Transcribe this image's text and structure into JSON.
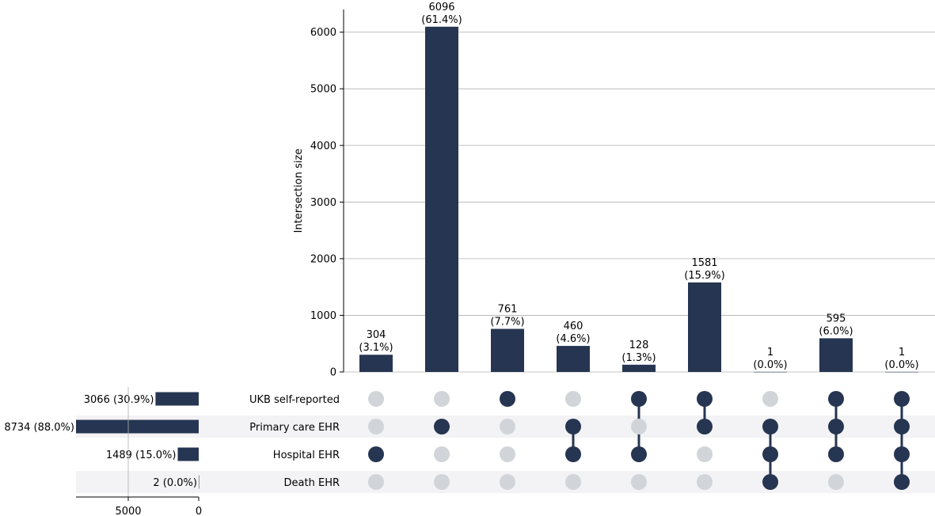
{
  "chart_data": {
    "type": "bar",
    "subtype": "upset",
    "ylabel": "Intersection size",
    "ylim": [
      0,
      6400
    ],
    "yticks": [
      0,
      1000,
      2000,
      3000,
      4000,
      5000,
      6000
    ],
    "grid": true,
    "colors": {
      "bar": "#263551",
      "dot_active": "#263551",
      "dot_inactive": "#d1d4d9",
      "grid": "#b0b0b0",
      "stripe": "#f3f3f5"
    },
    "sets": [
      {
        "name": "UKB self-reported",
        "size": 3066,
        "size_label": "3066 (30.9%)"
      },
      {
        "name": "Primary care EHR",
        "size": 8734,
        "size_label": "8734 (88.0%)"
      },
      {
        "name": "Hospital EHR",
        "size": 1489,
        "size_label": "1489 (15.0%)"
      },
      {
        "name": "Death EHR",
        "size": 2,
        "size_label": "2 (0.0%)"
      }
    ],
    "set_size_axis": {
      "ticks": [
        5000,
        0
      ],
      "max": 8734
    },
    "intersections": [
      {
        "value": 304,
        "label_value": "304",
        "label_pct": "(3.1%)",
        "members": [
          0,
          0,
          1,
          0
        ]
      },
      {
        "value": 6096,
        "label_value": "6096",
        "label_pct": "(61.4%)",
        "members": [
          0,
          1,
          0,
          0
        ]
      },
      {
        "value": 761,
        "label_value": "761",
        "label_pct": "(7.7%)",
        "members": [
          1,
          0,
          0,
          0
        ]
      },
      {
        "value": 460,
        "label_value": "460",
        "label_pct": "(4.6%)",
        "members": [
          0,
          1,
          1,
          0
        ]
      },
      {
        "value": 128,
        "label_value": "128",
        "label_pct": "(1.3%)",
        "members": [
          1,
          0,
          1,
          0
        ]
      },
      {
        "value": 1581,
        "label_value": "1581",
        "label_pct": "(15.9%)",
        "members": [
          1,
          1,
          0,
          0
        ]
      },
      {
        "value": 1,
        "label_value": "1",
        "label_pct": "(0.0%)",
        "members": [
          0,
          1,
          1,
          1
        ]
      },
      {
        "value": 595,
        "label_value": "595",
        "label_pct": "(6.0%)",
        "members": [
          1,
          1,
          1,
          0
        ]
      },
      {
        "value": 1,
        "label_value": "1",
        "label_pct": "(0.0%)",
        "members": [
          1,
          1,
          1,
          1
        ]
      }
    ]
  }
}
